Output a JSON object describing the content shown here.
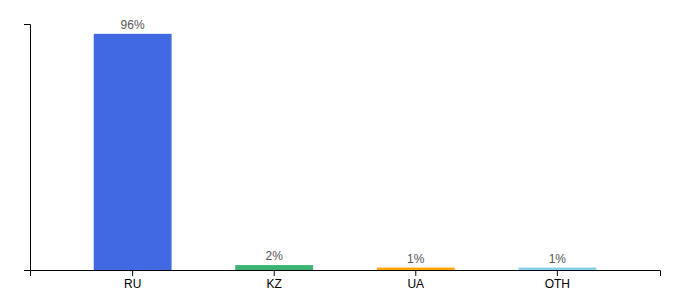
{
  "chart_data": {
    "type": "bar",
    "categories": [
      "RU",
      "KZ",
      "UA",
      "OTH"
    ],
    "values": [
      96,
      2,
      1,
      1
    ],
    "value_labels": [
      "96%",
      "2%",
      "1%",
      "1%"
    ],
    "colors": [
      "#4169E1",
      "#3CB371",
      "#FFA500",
      "#87CEEB"
    ],
    "ylim": [
      0,
      100
    ],
    "yticks": [],
    "data_labels": true,
    "tick_labels": "x"
  }
}
